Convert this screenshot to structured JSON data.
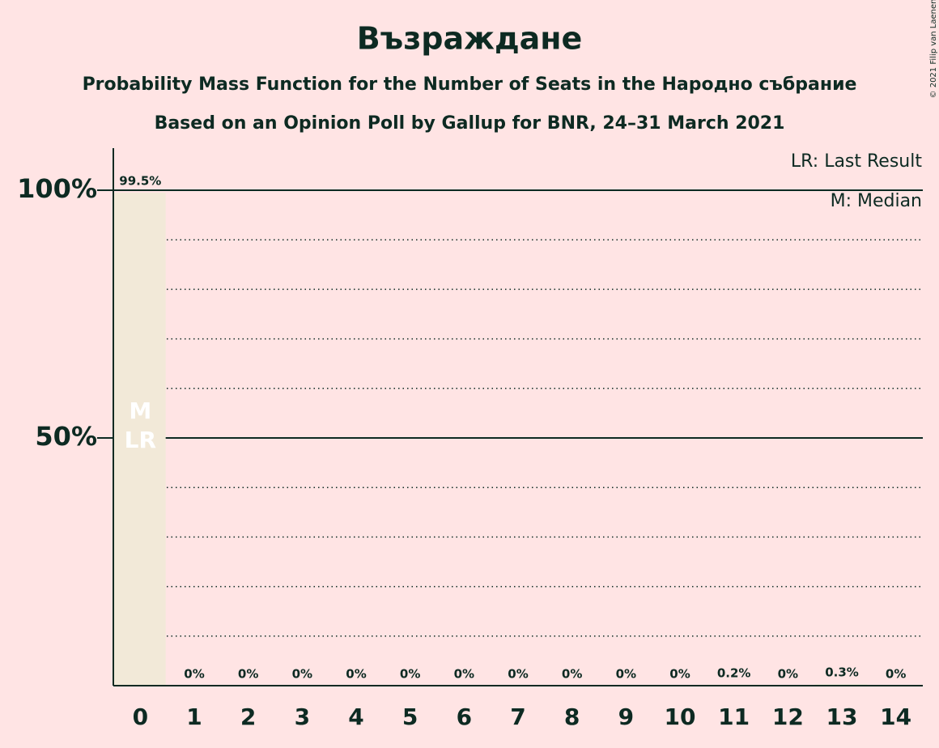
{
  "chart_data": {
    "type": "bar",
    "title": "Възраждане",
    "subtitle": "Probability Mass Function for the Number of Seats in the Народно събрание",
    "subtitle2": "Based on an Opinion Poll by Gallup for BNR, 24–31 March 2021",
    "categories": [
      "0",
      "1",
      "2",
      "3",
      "4",
      "5",
      "6",
      "7",
      "8",
      "9",
      "10",
      "11",
      "12",
      "13",
      "14"
    ],
    "values": [
      99.5,
      0,
      0,
      0,
      0,
      0,
      0,
      0,
      0,
      0,
      0,
      0.2,
      0,
      0.3,
      0
    ],
    "value_labels": [
      "99.5%",
      "0%",
      "0%",
      "0%",
      "0%",
      "0%",
      "0%",
      "0%",
      "0%",
      "0%",
      "0%",
      "0.2%",
      "0%",
      "0.3%",
      "0%"
    ],
    "color": "#f2e9d8",
    "ylim": [
      0,
      108.5
    ],
    "yticks": [
      {
        "value": 50,
        "label": "50%"
      },
      {
        "value": 100,
        "label": "100%"
      }
    ],
    "minor_grid": [
      10,
      20,
      30,
      40,
      60,
      70,
      80,
      90
    ],
    "annotations": [
      {
        "text": "M",
        "category": "0"
      },
      {
        "text": "LR",
        "category": "0"
      }
    ],
    "legend": [
      "LR: Last Result",
      "M: Median"
    ],
    "credit": "© 2021 Filip van Laenen"
  }
}
